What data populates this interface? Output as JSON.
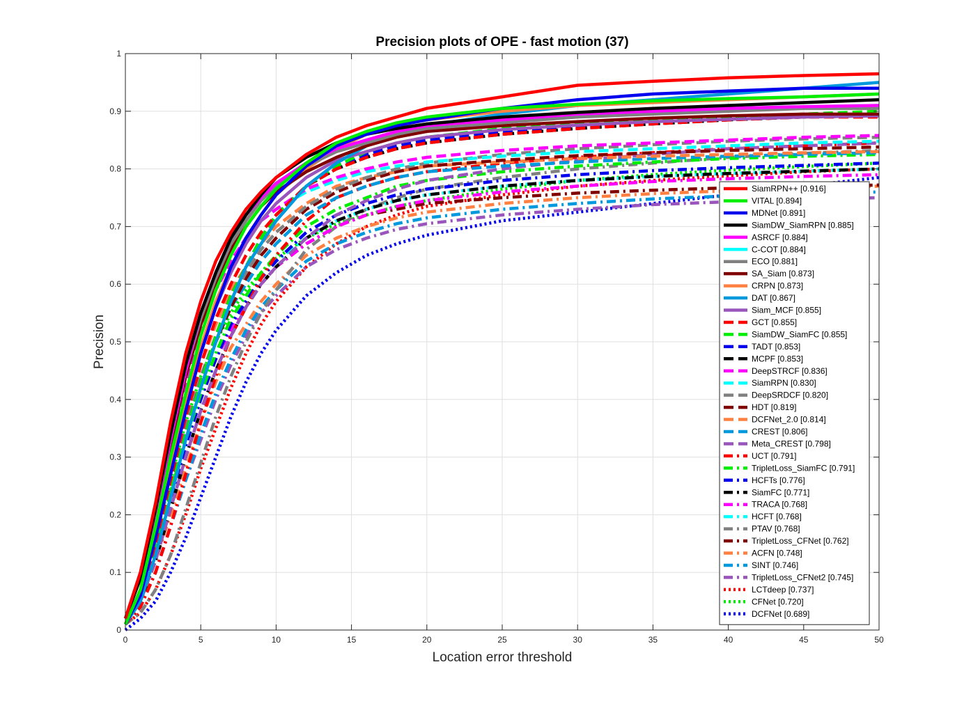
{
  "chart_data": {
    "type": "line",
    "title": "Precision plots of OPE - fast motion (37)",
    "xlabel": "Location error threshold",
    "ylabel": "Precision",
    "xlim": [
      0,
      50
    ],
    "ylim": [
      0,
      1
    ],
    "xticks": [
      "0",
      "5",
      "10",
      "15",
      "20",
      "25",
      "30",
      "35",
      "40",
      "45",
      "50"
    ],
    "yticks": [
      "0",
      "0.1",
      "0.2",
      "0.3",
      "0.4",
      "0.5",
      "0.6",
      "0.7",
      "0.8",
      "0.9",
      "1"
    ],
    "grid": true,
    "legend_position": "bottom-right",
    "x": [
      0,
      1,
      2,
      3,
      4,
      5,
      6,
      7,
      8,
      9,
      10,
      12,
      14,
      16,
      18,
      20,
      25,
      30,
      35,
      40,
      45,
      50
    ],
    "series": [
      {
        "name": "SiamRPN++ [0.916]",
        "color": "#ff0000",
        "style": "solid",
        "values": [
          0.02,
          0.1,
          0.22,
          0.36,
          0.48,
          0.57,
          0.64,
          0.69,
          0.73,
          0.76,
          0.785,
          0.825,
          0.855,
          0.875,
          0.89,
          0.905,
          0.925,
          0.945,
          0.952,
          0.958,
          0.962,
          0.965
        ]
      },
      {
        "name": "VITAL [0.894]",
        "color": "#00ee00",
        "style": "solid",
        "values": [
          0.01,
          0.07,
          0.18,
          0.3,
          0.41,
          0.51,
          0.59,
          0.65,
          0.7,
          0.735,
          0.765,
          0.81,
          0.845,
          0.865,
          0.88,
          0.89,
          0.905,
          0.912,
          0.918,
          0.922,
          0.925,
          0.93
        ]
      },
      {
        "name": "MDNet [0.891]",
        "color": "#0000ee",
        "style": "solid",
        "values": [
          0.01,
          0.06,
          0.16,
          0.27,
          0.38,
          0.48,
          0.56,
          0.63,
          0.68,
          0.72,
          0.755,
          0.805,
          0.84,
          0.86,
          0.875,
          0.885,
          0.905,
          0.92,
          0.93,
          0.935,
          0.94,
          0.94
        ]
      },
      {
        "name": "SiamDW_SiamRPN [0.885]",
        "color": "#000000",
        "style": "solid",
        "values": [
          0.02,
          0.09,
          0.21,
          0.34,
          0.46,
          0.55,
          0.62,
          0.68,
          0.72,
          0.755,
          0.785,
          0.82,
          0.845,
          0.86,
          0.87,
          0.878,
          0.89,
          0.898,
          0.905,
          0.91,
          0.915,
          0.92
        ]
      },
      {
        "name": "ASRCF [0.884]",
        "color": "#ff00ff",
        "style": "solid",
        "values": [
          0.02,
          0.09,
          0.2,
          0.33,
          0.45,
          0.55,
          0.62,
          0.68,
          0.72,
          0.75,
          0.775,
          0.81,
          0.835,
          0.85,
          0.865,
          0.875,
          0.885,
          0.895,
          0.9,
          0.905,
          0.908,
          0.91
        ]
      },
      {
        "name": "C-COT [0.884]",
        "color": "#00ffff",
        "style": "solid",
        "values": [
          0.02,
          0.09,
          0.2,
          0.33,
          0.45,
          0.55,
          0.62,
          0.68,
          0.72,
          0.75,
          0.775,
          0.81,
          0.835,
          0.85,
          0.865,
          0.875,
          0.885,
          0.895,
          0.9,
          0.905,
          0.908,
          0.91
        ]
      },
      {
        "name": "ECO [0.881]",
        "color": "#808080",
        "style": "solid",
        "values": [
          0.02,
          0.1,
          0.21,
          0.34,
          0.45,
          0.54,
          0.61,
          0.67,
          0.71,
          0.745,
          0.77,
          0.805,
          0.83,
          0.845,
          0.86,
          0.87,
          0.88,
          0.89,
          0.895,
          0.9,
          0.905,
          0.905
        ]
      },
      {
        "name": "SA_Siam [0.873]",
        "color": "#800000",
        "style": "solid",
        "values": [
          0.02,
          0.09,
          0.2,
          0.32,
          0.44,
          0.53,
          0.6,
          0.66,
          0.7,
          0.735,
          0.76,
          0.795,
          0.82,
          0.84,
          0.855,
          0.865,
          0.875,
          0.882,
          0.888,
          0.892,
          0.895,
          0.895
        ]
      },
      {
        "name": "CRPN [0.873]",
        "color": "#ff8040",
        "style": "solid",
        "values": [
          0.01,
          0.07,
          0.17,
          0.29,
          0.4,
          0.49,
          0.57,
          0.63,
          0.68,
          0.72,
          0.755,
          0.8,
          0.835,
          0.86,
          0.875,
          0.885,
          0.9,
          0.91,
          0.915,
          0.92,
          0.925,
          0.93
        ]
      },
      {
        "name": "DAT [0.867]",
        "color": "#0099dd",
        "style": "solid",
        "values": [
          0.01,
          0.05,
          0.13,
          0.23,
          0.33,
          0.42,
          0.5,
          0.57,
          0.63,
          0.67,
          0.71,
          0.77,
          0.81,
          0.84,
          0.86,
          0.875,
          0.895,
          0.91,
          0.92,
          0.93,
          0.94,
          0.95
        ]
      },
      {
        "name": "Siam_MCF [0.855]",
        "color": "#9955bb",
        "style": "solid",
        "values": [
          0.01,
          0.07,
          0.17,
          0.28,
          0.39,
          0.48,
          0.56,
          0.62,
          0.67,
          0.71,
          0.74,
          0.785,
          0.815,
          0.83,
          0.845,
          0.855,
          0.868,
          0.876,
          0.882,
          0.886,
          0.89,
          0.892
        ]
      },
      {
        "name": "GCT [0.855]",
        "color": "#ff0000",
        "style": "dashed",
        "values": [
          0.01,
          0.06,
          0.15,
          0.26,
          0.37,
          0.46,
          0.54,
          0.6,
          0.65,
          0.69,
          0.72,
          0.77,
          0.8,
          0.82,
          0.835,
          0.845,
          0.86,
          0.87,
          0.878,
          0.885,
          0.89,
          0.89
        ]
      },
      {
        "name": "SiamDW_SiamFC [0.855]",
        "color": "#00ee00",
        "style": "dashed",
        "values": [
          0.01,
          0.06,
          0.14,
          0.24,
          0.34,
          0.43,
          0.51,
          0.58,
          0.63,
          0.68,
          0.72,
          0.77,
          0.805,
          0.83,
          0.845,
          0.855,
          0.87,
          0.88,
          0.885,
          0.89,
          0.895,
          0.9
        ]
      },
      {
        "name": "TADT [0.853]",
        "color": "#0000ee",
        "style": "dashed",
        "values": [
          0.01,
          0.06,
          0.14,
          0.24,
          0.34,
          0.43,
          0.51,
          0.58,
          0.63,
          0.68,
          0.72,
          0.77,
          0.805,
          0.825,
          0.84,
          0.85,
          0.865,
          0.875,
          0.882,
          0.888,
          0.892,
          0.895
        ]
      },
      {
        "name": "MCPF [0.853]",
        "color": "#000000",
        "style": "dashed",
        "values": [
          0.01,
          0.06,
          0.14,
          0.24,
          0.34,
          0.43,
          0.51,
          0.58,
          0.63,
          0.68,
          0.72,
          0.77,
          0.8,
          0.82,
          0.835,
          0.845,
          0.86,
          0.87,
          0.878,
          0.885,
          0.89,
          0.892
        ]
      },
      {
        "name": "DeepSTRCF [0.836]",
        "color": "#ff00ff",
        "style": "dashed",
        "values": [
          0.02,
          0.09,
          0.2,
          0.32,
          0.43,
          0.52,
          0.59,
          0.64,
          0.68,
          0.71,
          0.73,
          0.765,
          0.785,
          0.8,
          0.812,
          0.82,
          0.832,
          0.84,
          0.845,
          0.85,
          0.855,
          0.858
        ]
      },
      {
        "name": "SiamRPN [0.830]",
        "color": "#00ffff",
        "style": "dashed",
        "values": [
          0.02,
          0.09,
          0.2,
          0.32,
          0.43,
          0.52,
          0.59,
          0.64,
          0.68,
          0.71,
          0.73,
          0.76,
          0.78,
          0.795,
          0.805,
          0.812,
          0.822,
          0.83,
          0.835,
          0.84,
          0.845,
          0.848
        ]
      },
      {
        "name": "DeepSRDCF [0.820]",
        "color": "#808080",
        "style": "dashed",
        "values": [
          0.01,
          0.06,
          0.15,
          0.25,
          0.35,
          0.44,
          0.51,
          0.57,
          0.62,
          0.66,
          0.69,
          0.735,
          0.765,
          0.785,
          0.8,
          0.81,
          0.825,
          0.835,
          0.842,
          0.848,
          0.852,
          0.855
        ]
      },
      {
        "name": "HDT [0.819]",
        "color": "#800000",
        "style": "dashed",
        "values": [
          0.01,
          0.06,
          0.14,
          0.24,
          0.34,
          0.43,
          0.5,
          0.56,
          0.61,
          0.65,
          0.68,
          0.73,
          0.76,
          0.78,
          0.795,
          0.805,
          0.815,
          0.823,
          0.828,
          0.832,
          0.835,
          0.838
        ]
      },
      {
        "name": "DCFNet_2.0 [0.814]",
        "color": "#ff8040",
        "style": "dashed",
        "values": [
          0.01,
          0.07,
          0.16,
          0.27,
          0.37,
          0.46,
          0.53,
          0.59,
          0.63,
          0.67,
          0.7,
          0.74,
          0.77,
          0.785,
          0.795,
          0.805,
          0.812,
          0.818,
          0.822,
          0.825,
          0.828,
          0.83
        ]
      },
      {
        "name": "CREST [0.806]",
        "color": "#0099dd",
        "style": "dashed",
        "values": [
          0.01,
          0.06,
          0.14,
          0.24,
          0.34,
          0.42,
          0.5,
          0.56,
          0.6,
          0.64,
          0.67,
          0.72,
          0.75,
          0.77,
          0.785,
          0.795,
          0.805,
          0.812,
          0.818,
          0.822,
          0.825,
          0.828
        ]
      },
      {
        "name": "Meta_CREST [0.798]",
        "color": "#9955bb",
        "style": "dashed",
        "values": [
          0.01,
          0.05,
          0.12,
          0.21,
          0.3,
          0.38,
          0.45,
          0.51,
          0.56,
          0.6,
          0.63,
          0.68,
          0.72,
          0.745,
          0.765,
          0.78,
          0.8,
          0.815,
          0.825,
          0.835,
          0.84,
          0.845
        ]
      },
      {
        "name": "UCT [0.791]",
        "color": "#ff0000",
        "style": "dashdot",
        "values": [
          0.01,
          0.04,
          0.1,
          0.18,
          0.27,
          0.36,
          0.44,
          0.51,
          0.56,
          0.61,
          0.65,
          0.71,
          0.75,
          0.77,
          0.785,
          0.795,
          0.81,
          0.82,
          0.828,
          0.835,
          0.84,
          0.845
        ]
      },
      {
        "name": "TripletLoss_SiamFC [0.791]",
        "color": "#00ee00",
        "style": "dashdot",
        "values": [
          0.01,
          0.06,
          0.14,
          0.24,
          0.33,
          0.41,
          0.48,
          0.54,
          0.58,
          0.62,
          0.65,
          0.7,
          0.73,
          0.75,
          0.77,
          0.78,
          0.795,
          0.805,
          0.812,
          0.818,
          0.822,
          0.825
        ]
      },
      {
        "name": "HCFTs [0.776]",
        "color": "#0000ee",
        "style": "dashdot",
        "values": [
          0.01,
          0.06,
          0.14,
          0.23,
          0.32,
          0.4,
          0.47,
          0.53,
          0.57,
          0.61,
          0.64,
          0.69,
          0.72,
          0.74,
          0.755,
          0.765,
          0.78,
          0.79,
          0.797,
          0.802,
          0.806,
          0.81
        ]
      },
      {
        "name": "SiamFC [0.771]",
        "color": "#000000",
        "style": "dashdot",
        "values": [
          0.01,
          0.05,
          0.12,
          0.21,
          0.3,
          0.38,
          0.45,
          0.51,
          0.56,
          0.6,
          0.63,
          0.68,
          0.71,
          0.73,
          0.745,
          0.755,
          0.77,
          0.78,
          0.787,
          0.792,
          0.796,
          0.8
        ]
      },
      {
        "name": "TRACA [0.768]",
        "color": "#ff00ff",
        "style": "dashdot",
        "values": [
          0.01,
          0.06,
          0.14,
          0.23,
          0.32,
          0.4,
          0.47,
          0.52,
          0.56,
          0.6,
          0.63,
          0.67,
          0.7,
          0.72,
          0.735,
          0.745,
          0.76,
          0.77,
          0.778,
          0.783,
          0.787,
          0.79
        ]
      },
      {
        "name": "HCFT [0.768]",
        "color": "#00ffff",
        "style": "dashdot",
        "values": [
          0.01,
          0.06,
          0.14,
          0.23,
          0.32,
          0.4,
          0.47,
          0.53,
          0.57,
          0.61,
          0.64,
          0.68,
          0.71,
          0.73,
          0.745,
          0.755,
          0.77,
          0.78,
          0.787,
          0.792,
          0.796,
          0.8
        ]
      },
      {
        "name": "PTAV [0.768]",
        "color": "#808080",
        "style": "dashdot",
        "values": [
          0.01,
          0.03,
          0.07,
          0.13,
          0.21,
          0.29,
          0.37,
          0.44,
          0.5,
          0.55,
          0.59,
          0.66,
          0.7,
          0.73,
          0.75,
          0.765,
          0.785,
          0.8,
          0.81,
          0.82,
          0.827,
          0.832
        ]
      },
      {
        "name": "TripletLoss_CFNet [0.762]",
        "color": "#800000",
        "style": "dashdot",
        "values": [
          0.01,
          0.05,
          0.12,
          0.21,
          0.3,
          0.38,
          0.45,
          0.51,
          0.56,
          0.6,
          0.63,
          0.67,
          0.7,
          0.72,
          0.73,
          0.74,
          0.75,
          0.758,
          0.763,
          0.767,
          0.77,
          0.772
        ]
      },
      {
        "name": "ACFN [0.748]",
        "color": "#ff8040",
        "style": "dashdot",
        "values": [
          0.01,
          0.05,
          0.12,
          0.2,
          0.28,
          0.36,
          0.43,
          0.49,
          0.53,
          0.57,
          0.6,
          0.65,
          0.68,
          0.7,
          0.715,
          0.725,
          0.74,
          0.75,
          0.757,
          0.762,
          0.766,
          0.77
        ]
      },
      {
        "name": "SINT [0.746]",
        "color": "#0099dd",
        "style": "dashdot",
        "values": [
          0.01,
          0.04,
          0.1,
          0.18,
          0.26,
          0.34,
          0.41,
          0.47,
          0.52,
          0.56,
          0.59,
          0.64,
          0.67,
          0.69,
          0.705,
          0.715,
          0.73,
          0.74,
          0.748,
          0.753,
          0.757,
          0.76
        ]
      },
      {
        "name": "TripletLoss_CFNet2 [0.745]",
        "color": "#9955bb",
        "style": "dashdot",
        "values": [
          0.01,
          0.04,
          0.1,
          0.18,
          0.26,
          0.33,
          0.4,
          0.46,
          0.51,
          0.55,
          0.58,
          0.63,
          0.66,
          0.68,
          0.695,
          0.705,
          0.72,
          0.73,
          0.738,
          0.743,
          0.747,
          0.75
        ]
      },
      {
        "name": "LCTdeep [0.737]",
        "color": "#ff0000",
        "style": "dotted",
        "values": [
          0.01,
          0.03,
          0.07,
          0.13,
          0.2,
          0.28,
          0.35,
          0.42,
          0.48,
          0.53,
          0.57,
          0.63,
          0.67,
          0.7,
          0.72,
          0.735,
          0.755,
          0.77,
          0.78,
          0.788,
          0.795,
          0.8
        ]
      },
      {
        "name": "CFNet [0.720]",
        "color": "#00ee00",
        "style": "dotted",
        "values": [
          0.01,
          0.07,
          0.16,
          0.26,
          0.36,
          0.44,
          0.5,
          0.55,
          0.59,
          0.62,
          0.645,
          0.68,
          0.705,
          0.72,
          0.735,
          0.745,
          0.765,
          0.78,
          0.79,
          0.798,
          0.804,
          0.81
        ]
      },
      {
        "name": "DCFNet [0.689]",
        "color": "#0000ee",
        "style": "dotted",
        "values": [
          0.0,
          0.02,
          0.05,
          0.1,
          0.16,
          0.23,
          0.3,
          0.37,
          0.43,
          0.48,
          0.52,
          0.58,
          0.62,
          0.65,
          0.67,
          0.685,
          0.71,
          0.725,
          0.74,
          0.755,
          0.77,
          0.785
        ]
      }
    ]
  }
}
